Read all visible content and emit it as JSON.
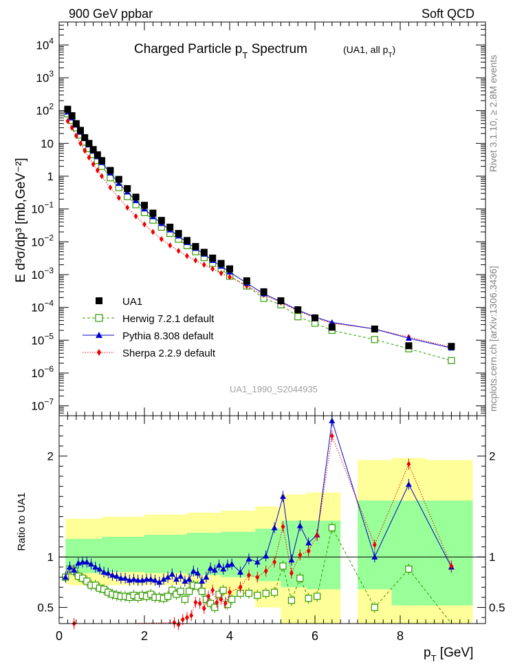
{
  "header": {
    "left": "900 GeV ppbar",
    "right": "Soft QCD"
  },
  "title": {
    "main": "Charged Particle p",
    "main_sub": "T",
    "main_tail": " Spectrum",
    "note": "(UA1, all p",
    "note_sub": "T",
    "note_tail": ")"
  },
  "side_labels": {
    "rivet": "Rivet 3.1.10, ≥ 2.8M events",
    "mcplots": "mcplots.cern.ch [arXiv:1306.3436]"
  },
  "watermark": "UA1_1990_S2044935",
  "chart_data": [
    {
      "type": "scatter",
      "xlabel": "p",
      "xlabel_sub": "T",
      "xlabel_unit": " [GeV]",
      "ylabel": "E d³σ/dp³ [mb,GeV⁻²]",
      "y_log": true,
      "xlim": [
        0,
        10
      ],
      "ylim": [
        5e-08,
        50000.0
      ],
      "yticks": [
        {
          "value": 10000.0,
          "label": "10",
          "sup": "4"
        },
        {
          "value": 1000.0,
          "label": "10",
          "sup": "3"
        },
        {
          "value": 100.0,
          "label": "10",
          "sup": "2"
        },
        {
          "value": 10,
          "label": "10",
          "sup": ""
        },
        {
          "value": 1,
          "label": "1",
          "sup": ""
        },
        {
          "value": 0.1,
          "label": "10",
          "sup": "−1"
        },
        {
          "value": 0.01,
          "label": "10",
          "sup": "−2"
        },
        {
          "value": 0.001,
          "label": "10",
          "sup": "−3"
        },
        {
          "value": 0.0001,
          "label": "10",
          "sup": "−4"
        },
        {
          "value": 1e-05,
          "label": "10",
          "sup": "−5"
        },
        {
          "value": 1e-06,
          "label": "10",
          "sup": "−6"
        },
        {
          "value": 1e-07,
          "label": "10",
          "sup": "−7"
        }
      ],
      "legend": [
        {
          "label": "UA1",
          "color": "#000000",
          "marker": "square-filled",
          "line": "none"
        },
        {
          "label": "Herwig 7.2.1 default",
          "color": "#339900",
          "marker": "square-open",
          "line": "dashed"
        },
        {
          "label": "Pythia 8.308 default",
          "color": "#0000cc",
          "marker": "triangle",
          "line": "solid"
        },
        {
          "label": "Sherpa 2.2.9 default",
          "color": "#ee0000",
          "marker": "diamond",
          "line": "dotted"
        }
      ],
      "series": [
        {
          "name": "UA1",
          "x": [
            0.2,
            0.3,
            0.4,
            0.5,
            0.6,
            0.7,
            0.8,
            0.9,
            1.0,
            1.2,
            1.4,
            1.6,
            1.8,
            2.0,
            2.2,
            2.4,
            2.6,
            2.8,
            3.0,
            3.2,
            3.4,
            3.6,
            3.8,
            4.0,
            4.4,
            4.8,
            5.2,
            5.6,
            6.0,
            6.4,
            7.4,
            8.2,
            9.2
          ],
          "y": [
            110,
            70,
            40,
            25,
            15,
            10,
            6.5,
            4.5,
            3.0,
            1.5,
            0.8,
            0.42,
            0.23,
            0.13,
            0.075,
            0.045,
            0.028,
            0.018,
            0.011,
            0.0072,
            0.0048,
            0.0032,
            0.0022,
            0.0015,
            0.00065,
            0.0003,
            0.00016,
            8.5e-05,
            4.8e-05,
            2.5e-05,
            2.2e-05,
            6.8e-06,
            6.5e-06
          ]
        },
        {
          "name": "Herwig 7.2.1 default",
          "x": [
            0.2,
            0.3,
            0.4,
            0.5,
            0.6,
            0.7,
            0.8,
            0.9,
            1.0,
            1.2,
            1.4,
            1.6,
            1.8,
            2.0,
            2.2,
            2.4,
            2.6,
            2.8,
            3.0,
            3.2,
            3.4,
            3.6,
            3.8,
            4.0,
            4.4,
            4.8,
            5.2,
            5.6,
            6.0,
            6.4,
            7.4,
            8.2,
            9.2
          ],
          "y": [
            80,
            50,
            30,
            18,
            11,
            7.0,
            4.5,
            3.0,
            2.0,
            0.9,
            0.45,
            0.24,
            0.135,
            0.078,
            0.046,
            0.028,
            0.018,
            0.012,
            0.0077,
            0.005,
            0.0033,
            0.0022,
            0.0015,
            0.0009,
            0.00045,
            0.00019,
            0.00012,
            5.2e-05,
            3.3e-05,
            2e-05,
            1.05e-05,
            5.5e-06,
            2.4e-06
          ]
        },
        {
          "name": "Pythia 8.308 default",
          "x": [
            0.2,
            0.3,
            0.4,
            0.5,
            0.6,
            0.7,
            0.8,
            0.9,
            1.0,
            1.2,
            1.4,
            1.6,
            1.8,
            2.0,
            2.2,
            2.4,
            2.6,
            2.8,
            3.0,
            3.2,
            3.4,
            3.6,
            3.8,
            4.0,
            4.4,
            4.8,
            5.2,
            5.6,
            6.0,
            6.4,
            7.4,
            8.2,
            9.2
          ],
          "y": [
            90,
            60,
            36,
            22,
            14,
            9.0,
            5.8,
            3.9,
            2.6,
            1.25,
            0.6,
            0.33,
            0.18,
            0.1,
            0.058,
            0.036,
            0.023,
            0.015,
            0.0095,
            0.0063,
            0.0042,
            0.0027,
            0.0018,
            0.0012,
            0.00055,
            0.00026,
            0.00015,
            8.3e-05,
            5.1e-05,
            3.5e-05,
            2.2e-05,
            1.15e-05,
            5.8e-06
          ]
        },
        {
          "name": "Sherpa 2.2.9 default",
          "x": [
            0.2,
            0.3,
            0.4,
            0.5,
            0.6,
            0.7,
            0.8,
            0.9,
            1.0,
            1.2,
            1.4,
            1.6,
            1.8,
            2.0,
            2.2,
            2.4,
            2.6,
            2.8,
            3.0,
            3.2,
            3.4,
            3.6,
            3.8,
            4.0,
            4.4,
            4.8,
            5.2,
            5.6,
            6.0,
            6.4,
            7.4,
            8.2,
            9.2
          ],
          "y": [
            48,
            30,
            17,
            10,
            6.0,
            3.7,
            2.3,
            1.5,
            1.0,
            0.45,
            0.22,
            0.11,
            0.06,
            0.034,
            0.02,
            0.012,
            0.0078,
            0.0053,
            0.0037,
            0.0027,
            0.002,
            0.0015,
            0.0011,
            0.00085,
            0.00045,
            0.00024,
            0.00014,
            7.8e-05,
            4.8e-05,
            3.3e-05,
            2.2e-05,
            1.25e-05,
            6.2e-06
          ]
        }
      ]
    },
    {
      "type": "scatter",
      "ylabel": "Ratio to UA1",
      "xlabel": "p",
      "xlabel_sub": "T",
      "xlabel_unit": " [GeV]",
      "xlim": [
        0,
        10
      ],
      "ylim": [
        0.34,
        2.4
      ],
      "xticks": [
        0,
        2,
        4,
        6,
        8
      ],
      "yticks": [
        0.5,
        1,
        2
      ],
      "bands": [
        {
          "x0": 0.15,
          "x1": 0.25,
          "green": [
            0.86,
            1.18
          ],
          "yellow": [
            0.73,
            1.38
          ]
        },
        {
          "x0": 0.25,
          "x1": 1.0,
          "green": [
            0.84,
            1.18
          ],
          "yellow": [
            0.72,
            1.38
          ]
        },
        {
          "x0": 1.0,
          "x1": 2.0,
          "green": [
            0.85,
            1.2
          ],
          "yellow": [
            0.72,
            1.4
          ]
        },
        {
          "x0": 2.0,
          "x1": 3.0,
          "green": [
            0.84,
            1.22
          ],
          "yellow": [
            0.72,
            1.42
          ]
        },
        {
          "x0": 3.0,
          "x1": 3.8,
          "green": [
            0.82,
            1.24
          ],
          "yellow": [
            0.68,
            1.44
          ]
        },
        {
          "x0": 3.8,
          "x1": 4.6,
          "green": [
            0.8,
            1.25
          ],
          "yellow": [
            0.62,
            1.46
          ]
        },
        {
          "x0": 4.6,
          "x1": 5.2,
          "green": [
            0.76,
            1.28
          ],
          "yellow": [
            0.5,
            1.5
          ]
        },
        {
          "x0": 5.2,
          "x1": 5.8,
          "green": [
            0.7,
            1.36
          ],
          "yellow": [
            0.34,
            1.62
          ]
        },
        {
          "x0": 5.8,
          "x1": 6.6,
          "green": [
            0.68,
            1.36
          ],
          "yellow": [
            0.34,
            1.64
          ]
        },
        {
          "x0": 7.0,
          "x1": 7.8,
          "green": [
            0.68,
            1.56
          ],
          "yellow": [
            0.34,
            1.96
          ]
        },
        {
          "x0": 7.8,
          "x1": 8.6,
          "green": [
            0.52,
            1.56
          ],
          "yellow": [
            0.34,
            1.98
          ]
        },
        {
          "x0": 8.6,
          "x1": 9.7,
          "green": [
            0.52,
            1.56
          ],
          "yellow": [
            0.34,
            1.96
          ]
        }
      ],
      "series": [
        {
          "name": "Herwig 7.2.1 default",
          "x": [
            0.15,
            0.25,
            0.35,
            0.45,
            0.55,
            0.65,
            0.75,
            0.85,
            0.95,
            1.05,
            1.15,
            1.25,
            1.35,
            1.45,
            1.55,
            1.65,
            1.75,
            1.85,
            1.95,
            2.05,
            2.15,
            2.25,
            2.35,
            2.45,
            2.55,
            2.65,
            2.75,
            2.85,
            2.95,
            3.05,
            3.15,
            3.25,
            3.35,
            3.45,
            3.55,
            3.65,
            3.75,
            3.85,
            3.95,
            4.05,
            4.25,
            4.45,
            4.65,
            4.85,
            5.05,
            5.25,
            5.45,
            5.65,
            5.85,
            6.05,
            6.4,
            7.4,
            8.2,
            9.2
          ],
          "y": [
            0.8,
            0.88,
            0.86,
            0.81,
            0.79,
            0.76,
            0.72,
            0.72,
            0.69,
            0.68,
            0.65,
            0.63,
            0.62,
            0.61,
            0.61,
            0.6,
            0.62,
            0.6,
            0.62,
            0.61,
            0.63,
            0.6,
            0.6,
            0.59,
            0.61,
            0.67,
            0.63,
            0.66,
            0.58,
            0.66,
            0.72,
            0.71,
            0.66,
            0.58,
            0.54,
            0.5,
            0.63,
            0.67,
            0.53,
            0.58,
            0.64,
            0.64,
            0.62,
            0.64,
            0.65,
            0.91,
            0.57,
            0.79,
            0.59,
            0.61,
            1.29,
            0.5,
            0.88,
            0.3
          ]
        },
        {
          "name": "Pythia 8.308 default",
          "x": [
            0.15,
            0.25,
            0.35,
            0.45,
            0.55,
            0.65,
            0.75,
            0.85,
            0.95,
            1.05,
            1.15,
            1.25,
            1.35,
            1.45,
            1.55,
            1.65,
            1.75,
            1.85,
            1.95,
            2.05,
            2.15,
            2.25,
            2.35,
            2.45,
            2.55,
            2.65,
            2.75,
            2.85,
            2.95,
            3.05,
            3.15,
            3.25,
            3.35,
            3.45,
            3.55,
            3.65,
            3.75,
            3.85,
            3.95,
            4.05,
            4.25,
            4.45,
            4.65,
            4.85,
            5.05,
            5.25,
            5.45,
            5.65,
            5.85,
            6.05,
            6.4,
            7.4,
            8.2,
            9.2
          ],
          "y": [
            0.8,
            0.9,
            0.87,
            0.94,
            0.95,
            0.95,
            0.93,
            0.9,
            0.88,
            0.85,
            0.84,
            0.82,
            0.81,
            0.79,
            0.79,
            0.77,
            0.78,
            0.77,
            0.77,
            0.78,
            0.78,
            0.77,
            0.75,
            0.78,
            0.8,
            0.83,
            0.78,
            0.81,
            0.76,
            0.78,
            0.86,
            0.84,
            0.76,
            0.8,
            0.89,
            0.87,
            0.92,
            0.88,
            0.92,
            0.93,
            0.85,
            0.98,
            0.95,
            1.01,
            1.29,
            1.6,
            0.97,
            1.31,
            1.14,
            1.22,
            2.35,
            1.0,
            1.72,
            0.9
          ]
        },
        {
          "name": "Sherpa 2.2.9 default",
          "x": [
            0.35,
            1.6,
            2.7,
            2.8,
            2.9,
            3.0,
            3.1,
            3.2,
            3.3,
            3.4,
            3.5,
            3.6,
            3.7,
            3.8,
            3.9,
            4.0,
            4.25,
            4.45,
            4.65,
            4.85,
            5.05,
            5.25,
            5.45,
            5.65,
            5.85,
            6.05,
            6.4,
            7.4,
            8.2,
            9.2
          ],
          "y": [
            0.34,
            0.28,
            0.35,
            0.33,
            0.38,
            0.4,
            0.42,
            0.55,
            0.54,
            0.49,
            0.61,
            0.67,
            0.55,
            0.58,
            0.54,
            0.65,
            0.7,
            0.82,
            0.8,
            0.86,
            0.95,
            1.3,
            0.84,
            1.02,
            1.06,
            1.21,
            2.2,
            1.12,
            1.92,
            0.91
          ]
        }
      ]
    }
  ]
}
